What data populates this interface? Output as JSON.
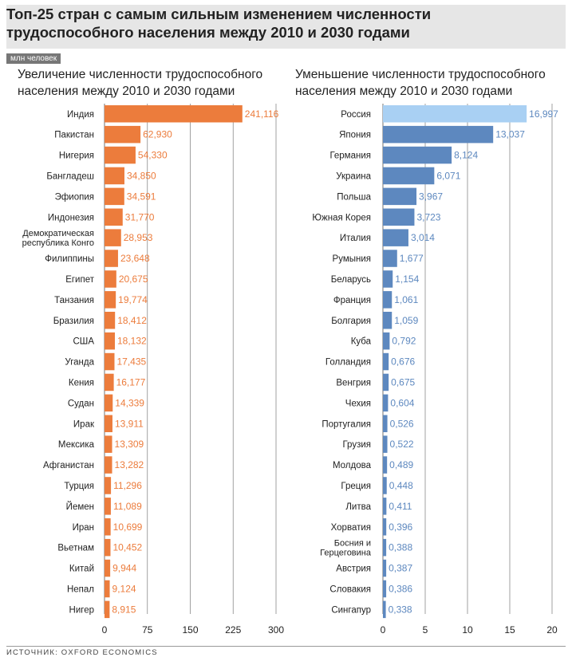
{
  "header": {
    "title": "Топ-25 стран с самым сильным изменением численности трудоспособного населения между 2010 и 2030 годами",
    "unit": "млн человек"
  },
  "source": "ИСТОЧНИК: OXFORD ECONOMICS",
  "colors": {
    "increase": "#ec7c3c",
    "decrease": "#5d88bf",
    "decrease_top": "#a9d0f3",
    "grid": "#8a8a8a",
    "header_bg": "#e6e6e6"
  },
  "chart_data": [
    {
      "type": "bar",
      "orientation": "horizontal",
      "title": "Увеличение численности трудоспособного населения между 2010 и 2030 годами",
      "categories": [
        "Индия",
        "Пакистан",
        "Нигерия",
        "Бангладеш",
        "Эфиопия",
        "Индонезия",
        "Демократическая республика Конго",
        "Филиппины",
        "Египет",
        "Танзания",
        "Бразилия",
        "США",
        "Уганда",
        "Кения",
        "Судан",
        "Ирак",
        "Мексика",
        "Афганистан",
        "Турция",
        "Йемен",
        "Иран",
        "Вьетнам",
        "Китай",
        "Непал",
        "Нигер"
      ],
      "labels": [
        "241,116",
        "62,930",
        "54,330",
        "34,850",
        "34,591",
        "31,770",
        "28,953",
        "23,648",
        "20,675",
        "19,774",
        "18,412",
        "18,132",
        "17,435",
        "16,177",
        "14,339",
        "13,911",
        "13,309",
        "13,282",
        "11,296",
        "11,089",
        "10,699",
        "10,452",
        "9,944",
        "9,124",
        "8,915"
      ],
      "values": [
        241.116,
        62.93,
        54.33,
        34.85,
        34.591,
        31.77,
        28.953,
        23.648,
        20.675,
        19.774,
        18.412,
        18.132,
        17.435,
        16.177,
        14.339,
        13.911,
        13.309,
        13.282,
        11.296,
        11.089,
        10.699,
        10.452,
        9.944,
        9.124,
        8.915
      ],
      "ticks": [
        "0",
        "75",
        "150",
        "225",
        "300"
      ],
      "xlim": [
        0,
        300
      ],
      "grid": true
    },
    {
      "type": "bar",
      "orientation": "horizontal",
      "title": "Уменьшение численности трудоспособного населения между 2010 и 2030 годами",
      "categories": [
        "Россия",
        "Япония",
        "Германия",
        "Украина",
        "Польша",
        "Южная Корея",
        "Италия",
        "Румыния",
        "Беларусь",
        "Франция",
        "Болгария",
        "Куба",
        "Голландия",
        "Венгрия",
        "Чехия",
        "Португалия",
        "Грузия",
        "Молдова",
        "Греция",
        "Литва",
        "Хорватия",
        "Босния и Герцеговина",
        "Австрия",
        "Словакия",
        "Сингапур"
      ],
      "labels": [
        "16,997",
        "13,037",
        "8,124",
        "6,071",
        "3,967",
        "3,723",
        "3,014",
        "1,677",
        "1,154",
        "1,061",
        "1,059",
        "0,792",
        "0,676",
        "0,675",
        "0,604",
        "0,526",
        "0,522",
        "0,489",
        "0,448",
        "0,411",
        "0,396",
        "0,388",
        "0,387",
        "0,386",
        "0,338"
      ],
      "values": [
        16.997,
        13.037,
        8.124,
        6.071,
        3.967,
        3.723,
        3.014,
        1.677,
        1.154,
        1.061,
        1.059,
        0.792,
        0.676,
        0.675,
        0.604,
        0.526,
        0.522,
        0.489,
        0.448,
        0.411,
        0.396,
        0.388,
        0.387,
        0.386,
        0.338
      ],
      "ticks": [
        "0",
        "5",
        "10",
        "15",
        "20"
      ],
      "xlim": [
        0,
        20
      ],
      "grid": true
    }
  ]
}
